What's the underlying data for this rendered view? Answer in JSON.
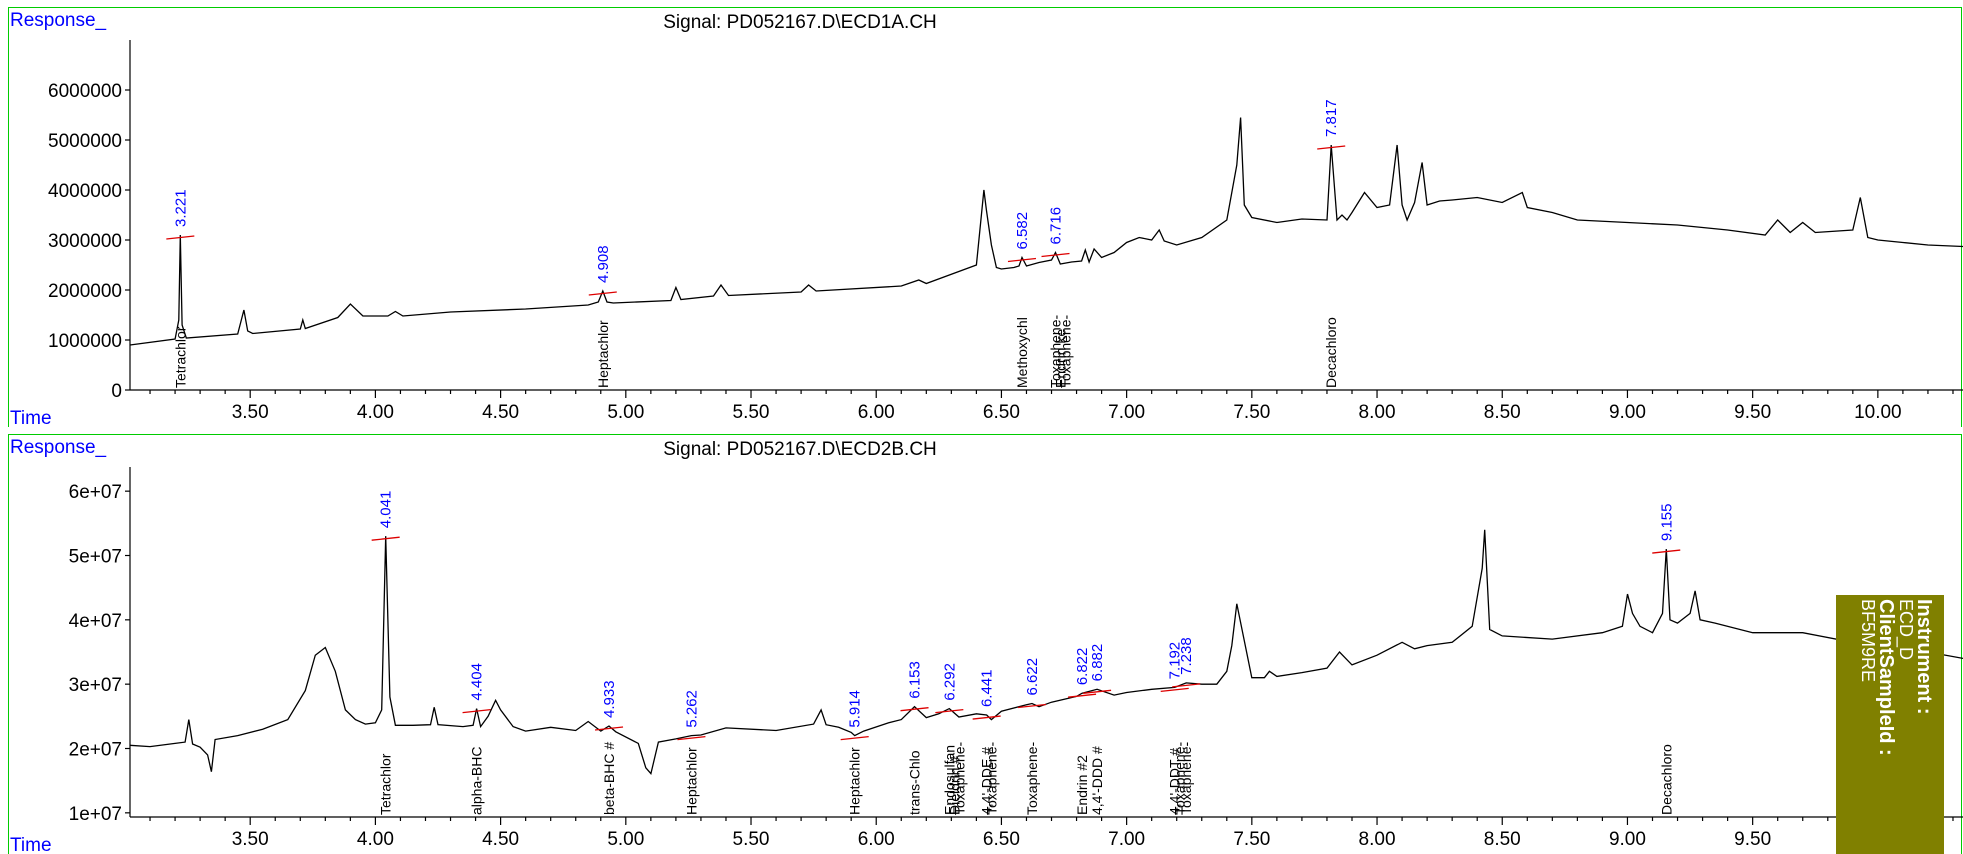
{
  "panels": [
    {
      "title": "Signal: PD052167.D\\ECD1A.CH",
      "y_axis_label": "Response_",
      "x_axis_label": "Time"
    },
    {
      "title": "Signal: PD052167.D\\ECD2B.CH",
      "y_axis_label": "Response_",
      "x_axis_label": "Time"
    }
  ],
  "info_box": {
    "instrument_label": "Instrument :",
    "instrument_value": "ECD_D",
    "sample_label": "ClientSampleId :",
    "sample_value": "BF5M9RE"
  },
  "chart_data": [
    {
      "type": "line",
      "title": "Signal: PD052167.D\\ECD1A.CH",
      "xlabel": "Time",
      "ylabel": "Response_",
      "xlim": [
        3.02,
        10.34
      ],
      "ylim": [
        0,
        6500000
      ],
      "x_ticks": [
        "3.50",
        "4.00",
        "4.50",
        "5.00",
        "5.50",
        "6.00",
        "6.50",
        "7.00",
        "7.50",
        "8.00",
        "8.50",
        "9.00",
        "9.50",
        "10.00"
      ],
      "y_ticks": [
        "0",
        "1000000",
        "2000000",
        "3000000",
        "4000000",
        "5000000",
        "6000000"
      ],
      "grid": false,
      "series": [
        {
          "x": [
            3.02,
            3.2,
            3.215,
            3.221,
            3.228,
            3.245,
            3.45,
            3.475,
            3.49,
            3.51,
            3.7,
            3.71,
            3.72,
            3.85,
            3.9,
            3.95,
            4.05,
            4.08,
            4.11,
            4.3,
            4.6,
            4.85,
            4.89,
            4.908,
            4.925,
            4.95,
            5.18,
            5.2,
            5.22,
            5.35,
            5.38,
            5.41,
            5.7,
            5.73,
            5.76,
            6.1,
            6.17,
            6.2,
            6.4,
            6.43,
            6.44,
            6.46,
            6.48,
            6.5,
            6.55,
            6.57,
            6.582,
            6.6,
            6.65,
            6.7,
            6.716,
            6.735,
            6.78,
            6.82,
            6.835,
            6.85,
            6.87,
            6.9,
            6.95,
            7.0,
            7.05,
            7.1,
            7.13,
            7.15,
            7.2,
            7.3,
            7.4,
            7.44,
            7.455,
            7.47,
            7.5,
            7.6,
            7.7,
            7.8,
            7.817,
            7.84,
            7.86,
            7.88,
            7.9,
            7.95,
            8.0,
            8.05,
            8.08,
            8.1,
            8.12,
            8.15,
            8.18,
            8.2,
            8.25,
            8.3,
            8.4,
            8.5,
            8.58,
            8.6,
            8.7,
            8.8,
            9.0,
            9.2,
            9.4,
            9.55,
            9.6,
            9.65,
            9.7,
            9.75,
            9.9,
            9.93,
            9.96,
            10.0,
            10.1,
            10.2,
            10.34
          ],
          "values": [
            900000,
            1020000,
            1400000,
            3100000,
            1300000,
            1040000,
            1120000,
            1600000,
            1180000,
            1130000,
            1220000,
            1400000,
            1230000,
            1450000,
            1720000,
            1480000,
            1480000,
            1570000,
            1480000,
            1560000,
            1620000,
            1700000,
            1760000,
            1980000,
            1760000,
            1740000,
            1790000,
            2050000,
            1810000,
            1880000,
            2100000,
            1890000,
            1960000,
            2100000,
            1980000,
            2080000,
            2200000,
            2130000,
            2500000,
            4000000,
            3600000,
            2900000,
            2450000,
            2420000,
            2450000,
            2480000,
            2650000,
            2480000,
            2550000,
            2600000,
            2750000,
            2520000,
            2560000,
            2580000,
            2800000,
            2560000,
            2820000,
            2650000,
            2750000,
            2950000,
            3050000,
            3000000,
            3200000,
            2980000,
            2900000,
            3050000,
            3400000,
            4500000,
            5450000,
            3700000,
            3450000,
            3350000,
            3420000,
            3400000,
            4900000,
            3400000,
            3500000,
            3400000,
            3550000,
            3950000,
            3650000,
            3700000,
            4900000,
            3700000,
            3400000,
            3750000,
            4550000,
            3700000,
            3780000,
            3800000,
            3850000,
            3750000,
            3950000,
            3650000,
            3550000,
            3400000,
            3350000,
            3300000,
            3200000,
            3100000,
            3400000,
            3150000,
            3350000,
            3150000,
            3200000,
            3850000,
            3050000,
            3000000,
            2950000,
            2900000,
            2870000
          ]
        }
      ],
      "annotations": [
        {
          "rt": "3.221",
          "x": 3.221,
          "y": 3100000,
          "compounds": [
            "Tetrachlor"
          ]
        },
        {
          "rt": "4.908",
          "x": 4.908,
          "y": 1980000,
          "compounds": [
            "Heptachlor"
          ]
        },
        {
          "rt": "6.582",
          "x": 6.582,
          "y": 2650000,
          "compounds": [
            "Methoxychl"
          ]
        },
        {
          "rt": "6.716",
          "x": 6.716,
          "y": 2750000,
          "compounds": [
            "Toxaphene-",
            "Endrin ke",
            "Toxaphene-"
          ]
        },
        {
          "rt": "7.817",
          "x": 7.817,
          "y": 4900000,
          "compounds": [
            "Decachloro"
          ]
        }
      ]
    },
    {
      "type": "line",
      "title": "Signal: PD052167.D\\ECD2B.CH",
      "xlabel": "Time",
      "ylabel": "Response_",
      "xlim": [
        3.02,
        10.34
      ],
      "ylim": [
        5000000,
        65000000
      ],
      "x_ticks": [
        "3.50",
        "4.00",
        "4.50",
        "5.00",
        "5.50",
        "6.00",
        "6.50",
        "7.00",
        "7.50",
        "8.00",
        "8.50",
        "9.00",
        "9.50"
      ],
      "y_ticks": [
        "1e+07",
        "2e+07",
        "3e+07",
        "4e+07",
        "5e+07",
        "6e+07"
      ],
      "grid": false,
      "series": [
        {
          "x": [
            3.02,
            3.1,
            3.2,
            3.24,
            3.255,
            3.27,
            3.3,
            3.33,
            3.345,
            3.36,
            3.45,
            3.55,
            3.65,
            3.72,
            3.76,
            3.8,
            3.84,
            3.88,
            3.92,
            3.96,
            4.0,
            4.025,
            4.041,
            4.058,
            4.08,
            4.15,
            4.22,
            4.235,
            4.25,
            4.35,
            4.39,
            4.404,
            4.42,
            4.45,
            4.48,
            4.5,
            4.55,
            4.6,
            4.7,
            4.8,
            4.8,
            4.85,
            4.9,
            4.933,
            4.96,
            5.05,
            5.08,
            5.1,
            5.13,
            5.2,
            5.262,
            5.3,
            5.4,
            5.6,
            5.75,
            5.78,
            5.8,
            5.85,
            5.9,
            5.914,
            5.95,
            6.05,
            6.1,
            6.153,
            6.2,
            6.25,
            6.292,
            6.33,
            6.4,
            6.441,
            6.46,
            6.5,
            6.6,
            6.622,
            6.65,
            6.7,
            6.8,
            6.822,
            6.882,
            6.95,
            7.0,
            7.1,
            7.192,
            7.238,
            7.3,
            7.36,
            7.4,
            7.42,
            7.44,
            7.5,
            7.55,
            7.57,
            7.6,
            7.7,
            7.8,
            7.85,
            7.9,
            8.0,
            8.1,
            8.15,
            8.2,
            8.3,
            8.38,
            8.42,
            8.43,
            8.45,
            8.5,
            8.7,
            8.9,
            8.98,
            9.0,
            9.02,
            9.05,
            9.1,
            9.14,
            9.155,
            9.17,
            9.2,
            9.25,
            9.27,
            9.29,
            9.35,
            9.5,
            9.7,
            9.9,
            10.0,
            10.2,
            10.34
          ],
          "values": [
            20500000,
            20300000,
            20800000,
            21000000,
            24500000,
            20700000,
            20200000,
            19000000,
            16400000,
            21400000,
            22000000,
            23000000,
            24500000,
            29000000,
            34500000,
            35700000,
            32000000,
            26000000,
            24500000,
            23800000,
            24000000,
            26000000,
            53000000,
            28000000,
            23600000,
            23600000,
            23700000,
            26400000,
            23700000,
            23400000,
            23600000,
            26200000,
            23400000,
            25000000,
            27500000,
            26000000,
            23400000,
            22700000,
            23300000,
            22800000,
            22800000,
            24200000,
            22700000,
            23500000,
            22600000,
            20800000,
            17000000,
            16100000,
            21000000,
            21500000,
            22000000,
            22100000,
            23200000,
            22800000,
            23800000,
            26000000,
            23700000,
            23300000,
            22500000,
            22000000,
            22700000,
            24000000,
            24500000,
            26500000,
            24800000,
            25400000,
            26200000,
            24900000,
            25400000,
            25200000,
            24500000,
            25800000,
            26800000,
            27000000,
            26500000,
            27200000,
            28100000,
            28600000,
            29200000,
            28300000,
            28700000,
            29200000,
            29500000,
            30200000,
            30000000,
            30000000,
            32000000,
            36000000,
            42500000,
            31000000,
            31000000,
            32000000,
            31200000,
            31800000,
            32500000,
            35000000,
            33000000,
            34500000,
            36500000,
            35500000,
            36000000,
            36500000,
            39000000,
            48000000,
            54000000,
            38500000,
            37500000,
            37000000,
            38000000,
            39000000,
            44000000,
            41000000,
            39000000,
            38000000,
            41000000,
            51000000,
            40000000,
            39500000,
            41000000,
            44500000,
            40000000,
            39500000,
            38000000,
            38000000,
            36500000,
            35500000,
            35000000,
            34000000
          ]
        }
      ],
      "annotations": [
        {
          "rt": "4.041",
          "x": 4.041,
          "y": 53000000,
          "compounds": [
            "Tetrachlor"
          ]
        },
        {
          "rt": "4.404",
          "x": 4.404,
          "y": 26200000,
          "compounds": [
            "alpha-BHC"
          ]
        },
        {
          "rt": "4.933",
          "x": 4.933,
          "y": 23500000,
          "compounds": [
            "beta-BHC #"
          ]
        },
        {
          "rt": "5.262",
          "x": 5.262,
          "y": 22000000,
          "compounds": [
            "Heptachlor"
          ]
        },
        {
          "rt": "5.914",
          "x": 5.914,
          "y": 22000000,
          "compounds": [
            "Heptachlor"
          ]
        },
        {
          "rt": "6.153",
          "x": 6.153,
          "y": 26500000,
          "compounds": [
            "trans-Chlo"
          ]
        },
        {
          "rt": "6.292",
          "x": 6.292,
          "y": 26200000,
          "compounds": [
            "Endosulfan",
            "Dieldrin #",
            "Toxaphene-"
          ]
        },
        {
          "rt": "6.441",
          "x": 6.441,
          "y": 25200000,
          "compounds": [
            "4,4'-DDE #",
            "Toxaphene-"
          ]
        },
        {
          "rt": "6.622",
          "x": 6.622,
          "y": 27000000,
          "compounds": [
            "Toxaphene-"
          ]
        },
        {
          "rt": "6.822",
          "x": 6.822,
          "y": 28600000,
          "compounds": [
            "Endrin #2"
          ]
        },
        {
          "rt": "6.882",
          "x": 6.882,
          "y": 29200000,
          "compounds": [
            "4,4'-DDD #"
          ]
        },
        {
          "rt": "7.192",
          "x": 7.192,
          "y": 29500000,
          "compounds": [
            "4,4'-DDT #",
            "Toxaphene-"
          ]
        },
        {
          "rt": "7.238",
          "x": 7.238,
          "y": 30200000,
          "compounds": [
            "Toxaphene-"
          ]
        },
        {
          "rt": "9.155",
          "x": 9.155,
          "y": 51000000,
          "compounds": [
            "Decachloro"
          ]
        }
      ]
    }
  ]
}
